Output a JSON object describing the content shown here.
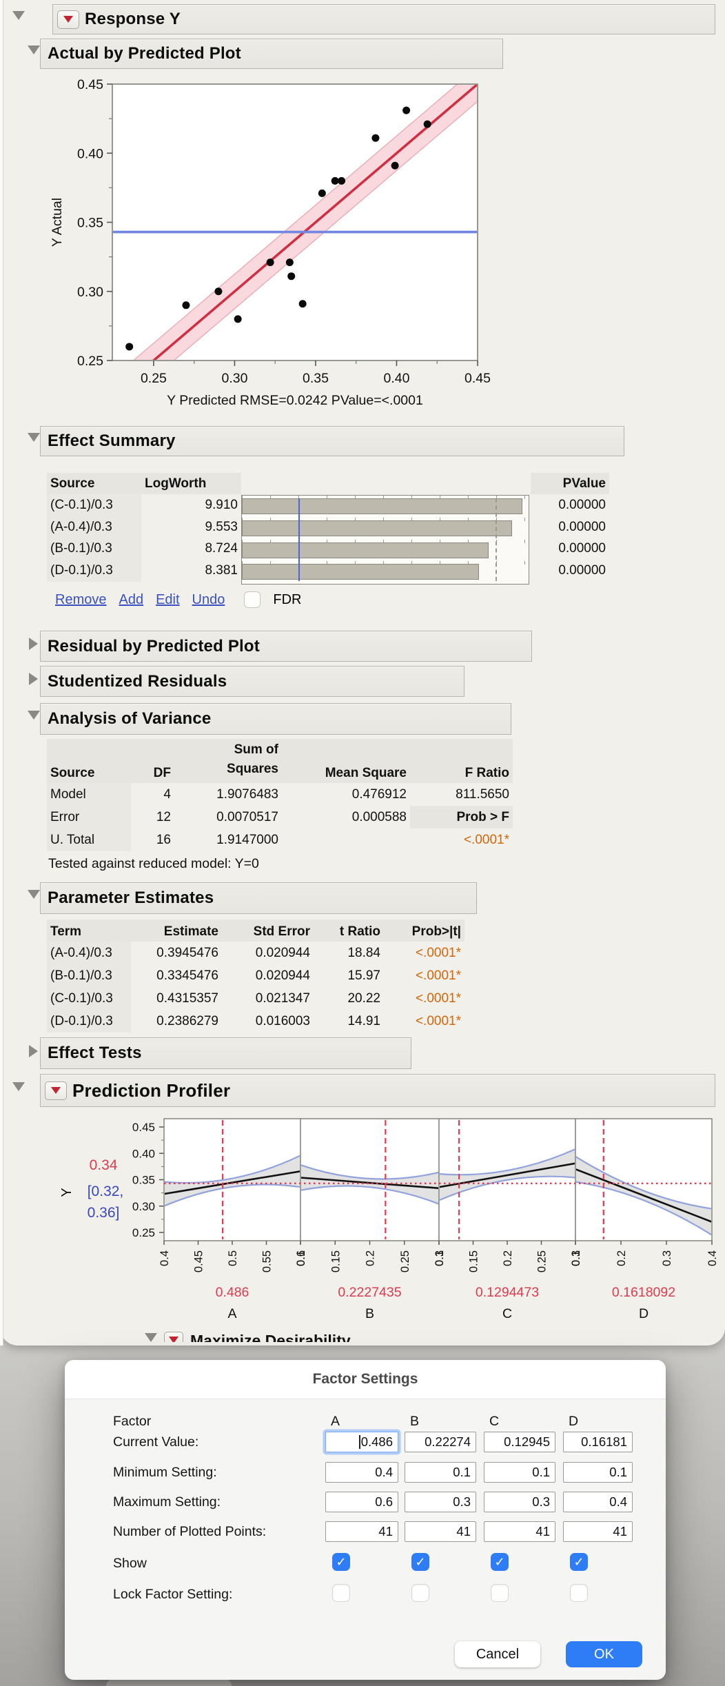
{
  "report": {
    "response_title": "Response Y",
    "abp_title": "Actual by Predicted Plot",
    "es_title": "Effect Summary",
    "residual_title": "Residual by Predicted Plot",
    "studentized_title": "Studentized Residuals",
    "aov_title": "Analysis of Variance",
    "pe_title": "Parameter Estimates",
    "et_title": "Effect Tests",
    "pp_title": "Prediction Profiler"
  },
  "effect_summary": {
    "columns": [
      "Source",
      "LogWorth",
      "PValue"
    ],
    "rows": [
      {
        "source": "(C-0.1)/0.3",
        "logworth": "9.910",
        "pvalue": "0.00000"
      },
      {
        "source": "(A-0.4)/0.3",
        "logworth": "9.553",
        "pvalue": "0.00000"
      },
      {
        "source": "(B-0.1)/0.3",
        "logworth": "8.724",
        "pvalue": "0.00000"
      },
      {
        "source": "(D-0.1)/0.3",
        "logworth": "8.381",
        "pvalue": "0.00000"
      }
    ],
    "links": [
      "Remove",
      "Add",
      "Edit",
      "Undo"
    ],
    "fdr_label": "FDR"
  },
  "anova": {
    "col_headers": [
      "Source",
      "DF",
      "Sum of|Squares",
      "Mean Square",
      "F Ratio"
    ],
    "rows": [
      [
        "Model",
        "4",
        "1.9076483",
        "0.476912",
        "811.5650"
      ],
      [
        "Error",
        "12",
        "0.0070517",
        "0.000588",
        "Prob > F"
      ],
      [
        "U. Total",
        "16",
        "1.9147000",
        "",
        "<.0001*"
      ]
    ],
    "footnote": "Tested against reduced model: Y=0"
  },
  "parameters": {
    "col_headers": [
      "Term",
      "Estimate",
      "Std Error",
      "t Ratio",
      "Prob>|t|"
    ],
    "rows": [
      [
        "(A-0.4)/0.3",
        "0.3945476",
        "0.020944",
        "18.84",
        "<.0001*"
      ],
      [
        "(B-0.1)/0.3",
        "0.3345476",
        "0.020944",
        "15.97",
        "<.0001*"
      ],
      [
        "(C-0.1)/0.3",
        "0.4315357",
        "0.021347",
        "20.22",
        "<.0001*"
      ],
      [
        "(D-0.1)/0.3",
        "0.2386279",
        "0.016003",
        "14.91",
        "<.0001*"
      ]
    ]
  },
  "chart_data": [
    {
      "id": "actual_by_predicted",
      "type": "scatter",
      "title": "Actual by Predicted Plot",
      "xlabel": "Y Predicted RMSE=0.0242 PValue=<.0001",
      "ylabel": "Y Actual",
      "xlim": [
        0.2245,
        0.45
      ],
      "ylim": [
        0.25,
        0.45
      ],
      "xticks": [
        0.25,
        0.3,
        0.35,
        0.4,
        0.45
      ],
      "yticks": [
        0.25,
        0.3,
        0.35,
        0.4,
        0.45
      ],
      "points": [
        [
          0.235,
          0.26
        ],
        [
          0.27,
          0.29
        ],
        [
          0.29,
          0.3
        ],
        [
          0.302,
          0.28
        ],
        [
          0.322,
          0.321
        ],
        [
          0.334,
          0.321
        ],
        [
          0.335,
          0.311
        ],
        [
          0.342,
          0.291
        ],
        [
          0.354,
          0.371
        ],
        [
          0.362,
          0.38
        ],
        [
          0.366,
          0.38
        ],
        [
          0.387,
          0.411
        ],
        [
          0.399,
          0.391
        ],
        [
          0.406,
          0.431
        ],
        [
          0.419,
          0.421
        ]
      ],
      "fit_line": {
        "slope": 1,
        "intercept": 0
      },
      "band_halfwidth": 0.0125,
      "mean_line_y": 0.343
    },
    {
      "id": "effect_summary_bars",
      "type": "bar",
      "categories": [
        "(C-0.1)/0.3",
        "(A-0.4)/0.3",
        "(B-0.1)/0.3",
        "(D-0.1)/0.3"
      ],
      "values": [
        9.91,
        9.553,
        8.724,
        8.381
      ],
      "xlabel": "LogWorth",
      "xlim": [
        0,
        10.13
      ],
      "ref_line": 2.0,
      "dashed_line": 8.95
    },
    {
      "id": "prediction_profiler",
      "type": "line",
      "ylabel": "Y",
      "yticks": [
        0.25,
        0.3,
        0.35,
        0.4,
        0.45
      ],
      "current_y": "0.34",
      "ci_line1": "[0.32,",
      "ci_line2": "0.36]",
      "hline": 0.343,
      "panels": [
        {
          "factor": "A",
          "current_label": "0.486",
          "current": 0.486,
          "xmin": 0.4,
          "xmax": 0.6,
          "ticks": [
            0.4,
            0.45,
            0.5,
            0.55,
            0.6
          ],
          "tick_labels": [
            "0.4",
            "0.45",
            "0.5",
            "0.55",
            "0.6"
          ],
          "y_left": 0.323,
          "y_right": 0.366,
          "band_left": 0.023,
          "band_mid": 0.008,
          "band_right": 0.03
        },
        {
          "factor": "B",
          "current_label": "0.2227435",
          "current": 0.2227435,
          "xmin": 0.1,
          "xmax": 0.3,
          "ticks": [
            0.1,
            0.15,
            0.2,
            0.25,
            0.3
          ],
          "tick_labels": [
            "0.1",
            "0.15",
            "0.2",
            "0.25",
            "0.3"
          ],
          "y_left": 0.354,
          "y_right": 0.334,
          "band_left": 0.024,
          "band_mid": 0.008,
          "band_right": 0.03
        },
        {
          "factor": "C",
          "current_label": "0.1294473",
          "current": 0.1294473,
          "xmin": 0.1,
          "xmax": 0.3,
          "ticks": [
            0.1,
            0.15,
            0.2,
            0.25,
            0.3
          ],
          "tick_labels": [
            "0.1",
            "0.15",
            "0.2",
            "0.25",
            "0.3"
          ],
          "y_left": 0.336,
          "y_right": 0.381,
          "band_left": 0.025,
          "band_mid": 0.009,
          "band_right": 0.027
        },
        {
          "factor": "D",
          "current_label": "0.1618092",
          "current": 0.1618092,
          "xmin": 0.1,
          "xmax": 0.4,
          "ticks": [
            0.1,
            0.2,
            0.3,
            0.4
          ],
          "tick_labels": [
            "0.1",
            "0.2",
            "0.3",
            "0.4"
          ],
          "y_left": 0.37,
          "y_right": 0.27,
          "band_left": 0.024,
          "band_mid": 0.009,
          "band_right": 0.025
        }
      ]
    }
  ],
  "dialog": {
    "title": "Factor Settings",
    "factor_row_label": "Factor",
    "factors": [
      "A",
      "B",
      "C",
      "D"
    ],
    "rows": [
      {
        "label": "Current Value:",
        "type": "input",
        "values": [
          "0.486",
          "0.22274",
          "0.12945",
          "0.16181"
        ],
        "focused": 0
      },
      {
        "label": "Minimum Setting:",
        "type": "input",
        "values": [
          "0.4",
          "0.1",
          "0.1",
          "0.1"
        ]
      },
      {
        "label": "Maximum Setting:",
        "type": "input",
        "values": [
          "0.6",
          "0.3",
          "0.3",
          "0.4"
        ]
      },
      {
        "label": "Number of Plotted Points:",
        "type": "input",
        "values": [
          "41",
          "41",
          "41",
          "41"
        ]
      },
      {
        "label": "Show",
        "type": "checkbox",
        "checked": [
          true,
          true,
          true,
          true
        ]
      },
      {
        "label": "Lock Factor Setting:",
        "type": "checkbox",
        "checked": [
          false,
          false,
          false,
          false
        ]
      }
    ],
    "cancel_label": "Cancel",
    "ok_label": "OK"
  },
  "misc": {
    "occluded_header": "Maximize Desirability",
    "stray_text": "0",
    "checkmark": "✓"
  },
  "colors": {
    "fit_red": "#cf2f42",
    "band_pink": "#f9d9de",
    "band_edge": "#eba6b2",
    "mean_blue": "#7186e3",
    "point_black": "#0a0a0a",
    "bar_fill": "#bdbaad",
    "bar_edge": "#8a887d",
    "ref_blue": "#4b66d8",
    "prof_red": "#e03a4e",
    "prof_band": "#e2e2e2",
    "prof_band_edge": "#91a2dd",
    "ci_blue": "#3747c4",
    "orange": "#d3660a",
    "link_blue": "#3a50bf",
    "dialog_accent": "#2e7cf6"
  }
}
